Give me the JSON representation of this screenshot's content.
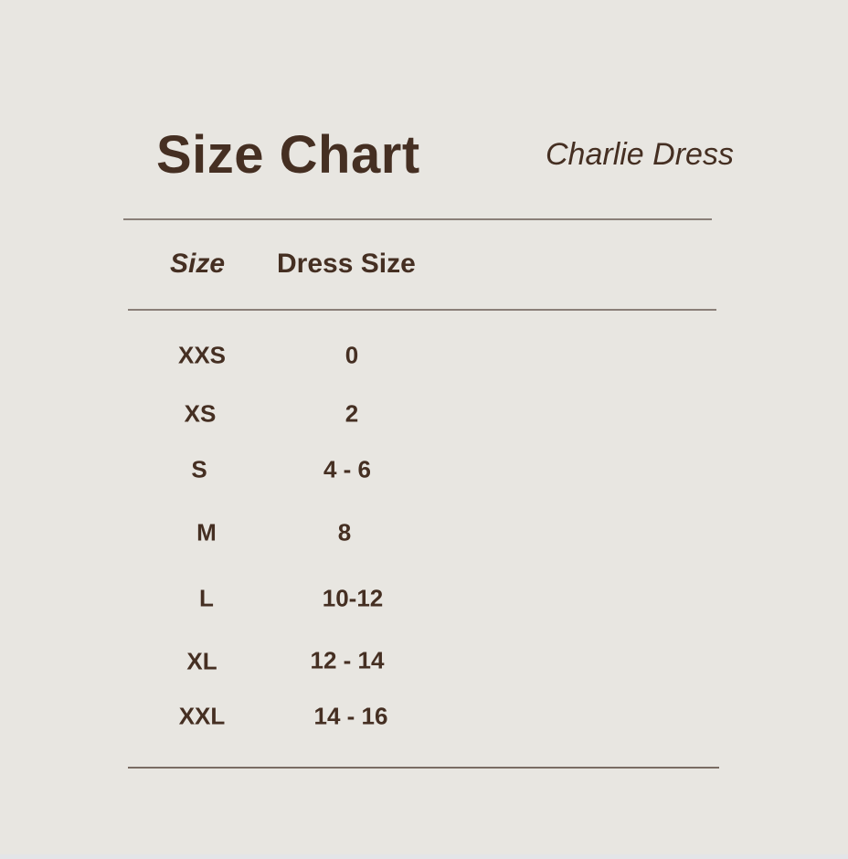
{
  "title": "Size Chart",
  "subtitle": "Charlie Dress",
  "table": {
    "headers": [
      "Size",
      "Dress Size"
    ],
    "rows": [
      {
        "size": "XXS",
        "dress_size": "0"
      },
      {
        "size": "XS",
        "dress_size": "2"
      },
      {
        "size": "S",
        "dress_size": "4 - 6"
      },
      {
        "size": "M",
        "dress_size": "8"
      },
      {
        "size": "L",
        "dress_size": "10-12"
      },
      {
        "size": "XL",
        "dress_size": "12 - 14"
      },
      {
        "size": "XXL",
        "dress_size": "14 - 16"
      }
    ]
  },
  "colors": {
    "background": "#e8e6e1",
    "text": "#452f22",
    "rule": "#8a7f78"
  }
}
